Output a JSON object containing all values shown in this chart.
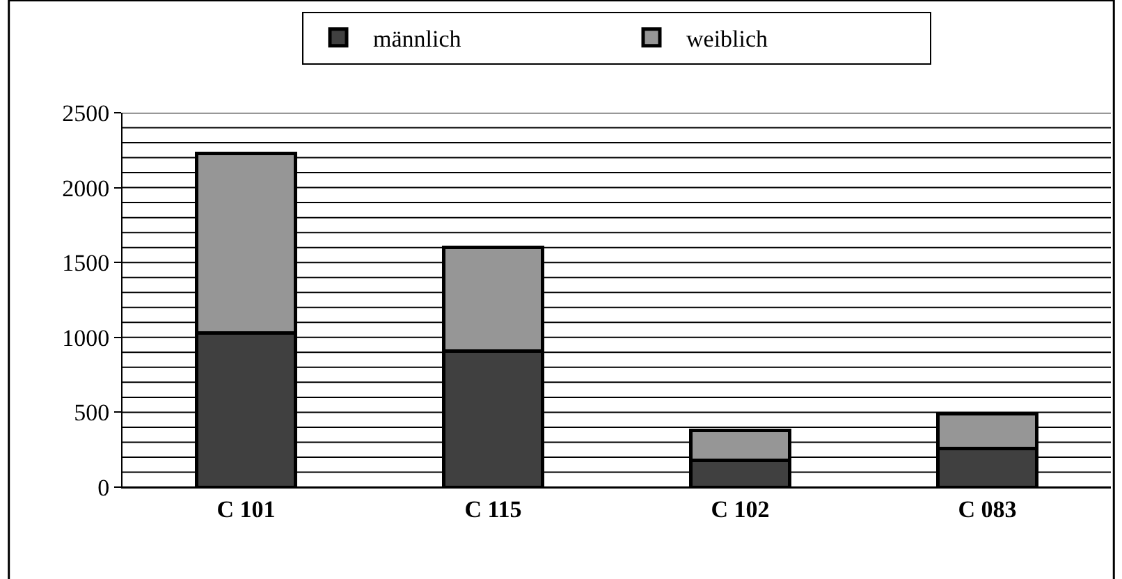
{
  "chart_data": {
    "type": "bar",
    "stacked": true,
    "categories": [
      "C 101",
      "C 115",
      "C 102",
      "C 083"
    ],
    "series": [
      {
        "name": "männlich",
        "color": "#404040",
        "values": [
          1030,
          910,
          180,
          260
        ]
      },
      {
        "name": "weiblich",
        "color": "#969696",
        "values": [
          1200,
          690,
          200,
          230
        ]
      }
    ],
    "ylim": [
      0,
      2500
    ],
    "yticks": [
      0,
      500,
      1000,
      1500,
      2000,
      2500
    ],
    "grid": "y",
    "legend": "top"
  }
}
